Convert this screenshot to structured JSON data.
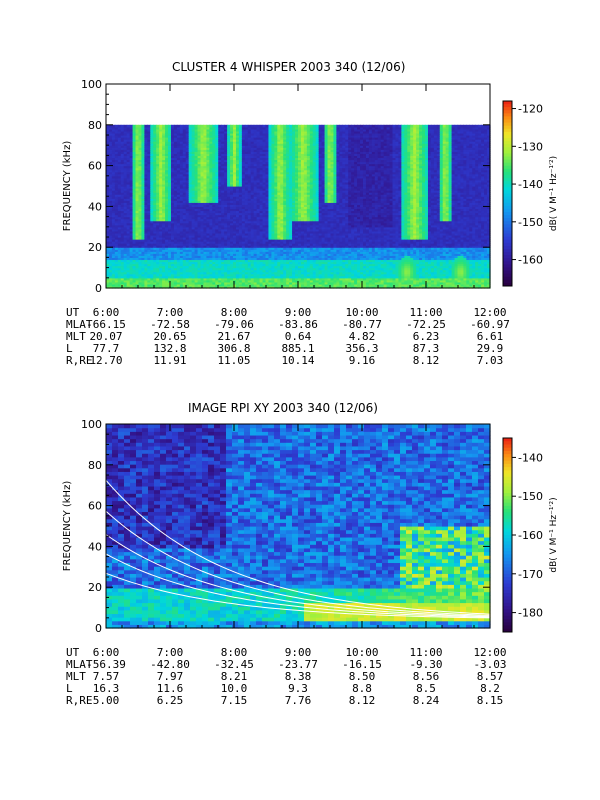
{
  "chart_data": [
    {
      "type": "heatmap",
      "title": "CLUSTER 4 WHISPER 2003 340 (12/06)",
      "ylabel": "FREQUENCY (kHz)",
      "ylim": [
        0,
        100
      ],
      "yticks": [
        0,
        20,
        40,
        60,
        80,
        100
      ],
      "x": [
        "6:00",
        "7:00",
        "8:00",
        "9:00",
        "10:00",
        "11:00",
        "12:00"
      ],
      "data_ceiling_khz": 80,
      "colorbar": {
        "label": "dB( V M⁻¹ Hz⁻¹′²)",
        "range": [
          -167,
          -118
        ],
        "ticks": [
          -120,
          -130,
          -140,
          -150,
          -160
        ]
      },
      "ephemeris": [
        {
          "label": "UT",
          "values": [
            "6:00",
            "7:00",
            "8:00",
            "9:00",
            "10:00",
            "11:00",
            "12:00"
          ]
        },
        {
          "label": "MLAT",
          "values": [
            "-66.15",
            "-72.58",
            "-79.06",
            "-83.86",
            "-80.77",
            "-72.25",
            "-60.97"
          ]
        },
        {
          "label": "MLT",
          "values": [
            "20.07",
            "20.65",
            "21.67",
            "0.64",
            "4.82",
            "6.23",
            "6.61"
          ]
        },
        {
          "label": "L",
          "values": [
            "77.7",
            "132.8",
            "306.8",
            "885.1",
            "356.3",
            "87.3",
            "29.9"
          ]
        },
        {
          "label": "R,RE",
          "values": [
            "12.70",
            "11.91",
            "11.05",
            "10.14",
            "9.16",
            "8.12",
            "7.03"
          ]
        }
      ]
    },
    {
      "type": "heatmap",
      "title": "IMAGE RPI XY 2003 340 (12/06)",
      "ylabel": "FREQUENCY (kHz)",
      "ylim": [
        0,
        100
      ],
      "yticks": [
        0,
        20,
        40,
        60,
        80,
        100
      ],
      "x": [
        "6:00",
        "7:00",
        "8:00",
        "9:00",
        "10:00",
        "11:00",
        "12:00"
      ],
      "colorbar": {
        "label": "dB( V M⁻¹ Hz⁻¹′²)",
        "range": [
          -185,
          -135
        ],
        "ticks": [
          -140,
          -150,
          -160,
          -170,
          -180
        ]
      },
      "ephemeris": [
        {
          "label": "UT",
          "values": [
            "6:00",
            "7:00",
            "8:00",
            "9:00",
            "10:00",
            "11:00",
            "12:00"
          ]
        },
        {
          "label": "MLAT",
          "values": [
            "-56.39",
            "-42.80",
            "-32.45",
            "-23.77",
            "-16.15",
            "-9.30",
            "-3.03"
          ]
        },
        {
          "label": "MLT",
          "values": [
            "7.57",
            "7.97",
            "8.21",
            "8.38",
            "8.50",
            "8.56",
            "8.57"
          ]
        },
        {
          "label": "L",
          "values": [
            "16.3",
            "11.6",
            "10.0",
            "9.3",
            "8.8",
            "8.5",
            "8.2"
          ]
        },
        {
          "label": "R,RE",
          "values": [
            "5.00",
            "6.25",
            "7.15",
            "7.76",
            "8.12",
            "8.24",
            "8.15"
          ]
        }
      ]
    }
  ]
}
